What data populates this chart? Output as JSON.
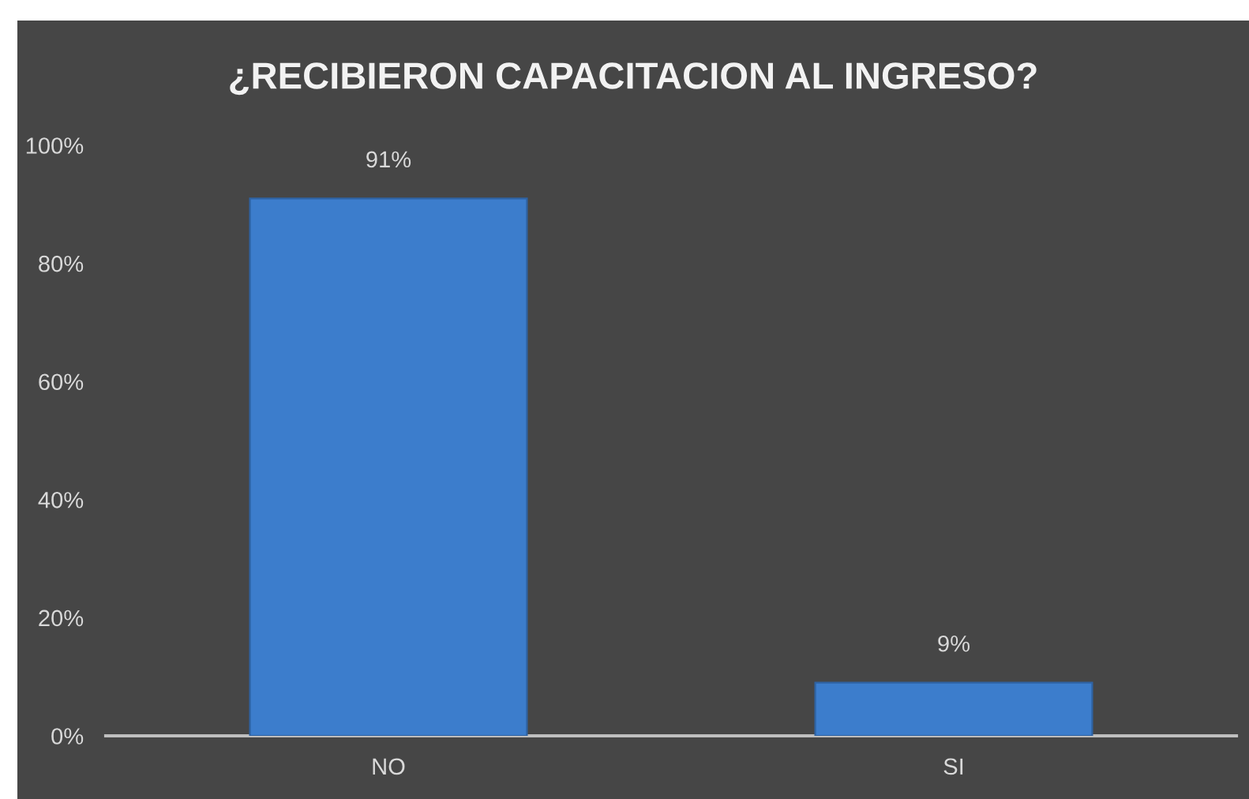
{
  "chart_data": {
    "type": "bar",
    "title": "¿RECIBIERON CAPACITACION AL INGRESO?",
    "categories": [
      "NO",
      "SI"
    ],
    "values": [
      91,
      9
    ],
    "color": "#3c7dcc",
    "value_labels": [
      "91%",
      "9%"
    ],
    "ylim": [
      0,
      100
    ],
    "yticks": [
      {
        "value": 0,
        "label": "0%"
      },
      {
        "value": 20,
        "label": "20%"
      },
      {
        "value": 40,
        "label": "40%"
      },
      {
        "value": 60,
        "label": "60%"
      },
      {
        "value": 80,
        "label": "80%"
      },
      {
        "value": 100,
        "label": "100%"
      }
    ],
    "grid": false
  }
}
